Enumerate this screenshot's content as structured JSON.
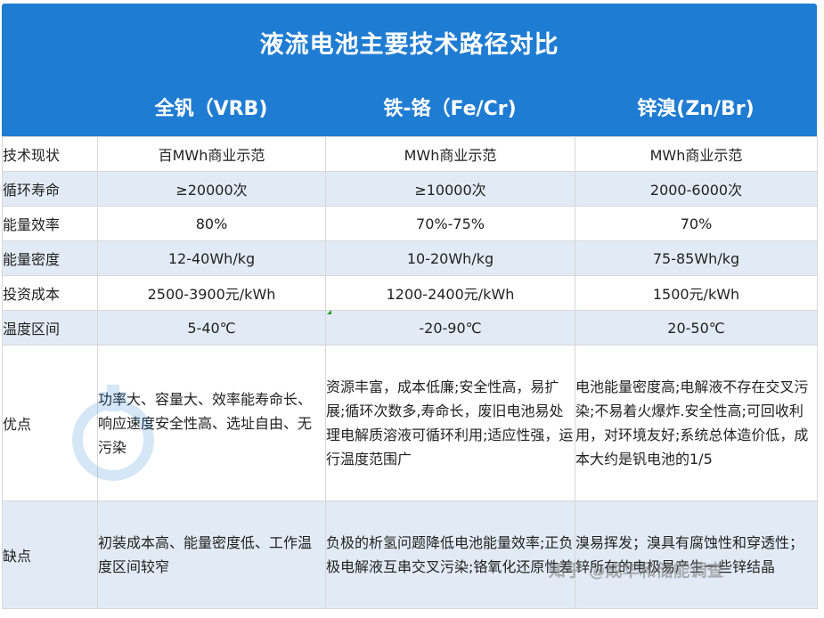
{
  "title": "液流电池主要技术路径对比",
  "columns": [
    "全钒（VRB)",
    "铁-铬（Fe/Cr)",
    "锌溴(Zn/Br)"
  ],
  "rows": [
    {
      "label": "技术现状",
      "values": [
        "百MWh商业示范",
        "MWh商业示范",
        "MWh商业示范"
      ]
    },
    {
      "label": "循环寿命",
      "values": [
        "≥20000次",
        "≥10000次",
        "2000-6000次"
      ]
    },
    {
      "label": "能量效率",
      "values": [
        "80%",
        "70%-75%",
        "70%"
      ]
    },
    {
      "label": "能量密度",
      "values": [
        "12-40Wh/kg",
        "10-20Wh/kg",
        "75-85Wh/kg"
      ]
    },
    {
      "label": "投资成本",
      "values": [
        "2500-3900元/kWh",
        "1200-2400元/kWh",
        "1500元/kWh"
      ]
    },
    {
      "label": "温度区间",
      "values": [
        "5-40℃",
        "-20-90℃",
        "20-50℃"
      ]
    },
    {
      "label": "优点",
      "values": [
        "功率大、容量大、效率能寿命长、响应速度安全性高、选址自由、无污染",
        "资源丰富，成本低廉;安全性高，易扩展;循环次数多,寿命长，废旧电池易处理电解质溶液可循环利用;适应性强，运行温度范围广",
        "电池能量密度高;电解液不存在交叉污染;不易着火爆炸.安全性高;可回收利用，对环境友好;系统总体造价低，成本大约是钒电池的1/5"
      ]
    },
    {
      "label": "缺点",
      "values": [
        "初装成本高、能量密度低、工作温度区间较窄",
        "负极的析氢问题降低电池能量效率;正负极电解液互串交叉污染;铬氧化还原性差",
        "溴易挥发；溴具有腐蚀性和穿透性；锌所在的电极易产生一些锌结晶"
      ]
    }
  ],
  "watermark": {
    "text": "知乎 @成华和储能调查"
  },
  "colors": {
    "header": "#1f7cd3",
    "row_alt": "#e2ebf5"
  }
}
